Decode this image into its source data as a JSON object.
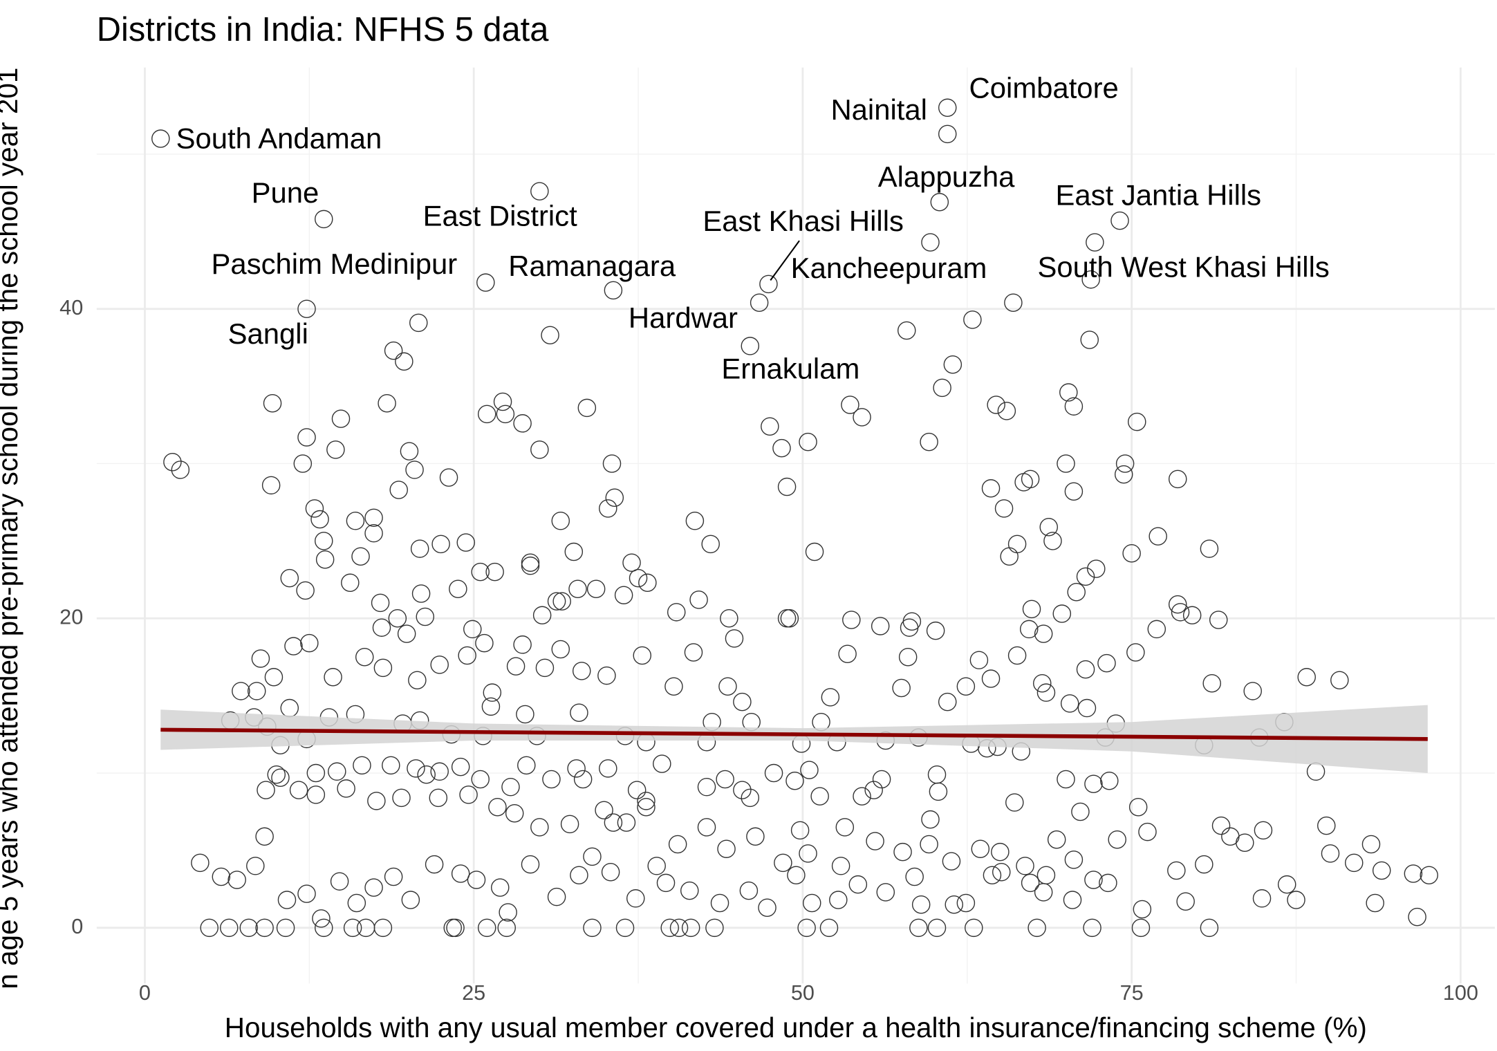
{
  "chart_data": {
    "type": "scatter",
    "title": "Districts in India: NFHS 5 data",
    "x_label": "Households with any usual member covered under a health insurance/financing scheme (%)",
    "y_label": "n age 5 years who attended pre-primary school during the school year 201",
    "color": "#333333",
    "grid": true,
    "xlim": [
      -3.66,
      102.6
    ],
    "ylim": [
      -3.6,
      55.6
    ],
    "xticks": [
      0,
      25,
      50,
      75,
      100
    ],
    "yticks": [
      0,
      20,
      40
    ],
    "x": [
      1.2,
      13.6,
      25.9,
      12.3,
      30.0,
      35.6,
      46.0,
      46.7,
      47.4,
      61.0,
      61.0,
      60.4,
      74.1,
      72.2,
      59.7,
      71.9,
      2.1,
      2.7,
      9.6,
      9.7,
      12.0,
      12.3,
      14.5,
      14.9,
      18.4,
      18.9,
      19.7,
      20.8,
      20.1,
      20.5,
      23.1,
      26.0,
      27.2,
      27.4,
      28.7,
      30.0,
      30.8,
      33.6,
      35.5,
      35.7,
      35.2,
      41.8,
      43.0,
      37.0,
      37.5,
      38.2,
      34.3,
      32.9,
      29.3,
      29.3,
      31.6,
      32.6,
      25.5,
      26.6,
      22.5,
      24.4,
      20.9,
      19.3,
      12.9,
      11.0,
      12.2,
      13.3,
      13.6,
      13.7,
      16.0,
      16.4,
      17.4,
      17.4,
      15.6,
      17.9,
      18.0,
      19.2,
      19.9,
      21.3,
      21.0,
      23.8,
      24.9,
      28.7,
      30.2,
      31.3,
      31.6,
      40.4,
      42.1,
      44.4,
      44.8,
      48.8,
      50.9,
      53.4,
      53.7,
      55.9,
      58.0,
      58.1,
      58.3,
      60.1,
      61.0,
      57.5,
      60.3,
      56.0,
      54.5,
      48.8,
      48.4,
      50.4,
      47.5,
      49.0,
      52.1,
      54.5,
      53.6,
      59.6,
      60.6,
      61.4,
      57.9,
      62.9,
      64.3,
      65.3,
      64.7,
      65.5,
      65.7,
      66.3,
      66.8,
      67.3,
      66.0,
      68.7,
      69.0,
      69.7,
      70.2,
      70.6,
      70.0,
      70.6,
      70.8,
      71.5,
      72.3,
      71.8,
      75.4,
      74.5,
      74.4,
      75.0,
      77.0,
      78.5,
      78.5,
      78.7,
      79.6,
      80.9,
      81.6,
      75.3,
      76.9,
      88.3,
      90.8,
      84.2,
      84.7,
      86.6,
      81.1,
      80.5,
      71.5,
      73.1,
      68.3,
      67.4,
      67.2,
      66.3,
      64.3,
      63.4,
      62.4,
      68.5,
      68.2,
      71.6,
      70.3,
      73.8,
      73.0,
      64.0,
      62.8,
      58.8,
      56.3,
      52.6,
      51.4,
      49.9,
      47.8,
      49.4,
      50.5,
      46.1,
      45.4,
      44.3,
      43.1,
      42.7,
      41.7,
      40.2,
      38.1,
      38.1,
      37.4,
      36.6,
      34.9,
      33.3,
      33.2,
      35.1,
      36.4,
      37.8,
      31.7,
      30.4,
      28.2,
      26.4,
      26.3,
      25.8,
      24.5,
      22.4,
      20.7,
      18.1,
      16.7,
      14.3,
      12.5,
      11.3,
      9.8,
      8.5,
      7.3,
      8.3,
      11.0,
      10.3,
      12.3,
      14.0,
      16.0,
      19.6,
      20.9,
      23.3,
      25.7,
      28.9,
      29.8,
      33.0,
      36.5,
      10.3,
      11.7,
      13.0,
      15.3,
      17.6,
      19.5,
      21.4,
      22.3,
      24.6,
      26.8,
      28.1,
      30.0,
      32.3,
      34.0,
      35.6,
      38.9,
      40.5,
      42.7,
      44.2,
      46.4,
      48.5,
      50.4,
      52.9,
      55.5,
      57.6,
      59.6,
      61.3,
      63.5,
      65.0,
      66.9,
      68.5,
      70.6,
      72.1,
      73.9,
      75.5,
      78.4,
      80.5,
      81.8,
      82.5,
      83.6,
      85.0,
      86.8,
      87.5,
      89.0,
      89.8,
      90.1,
      91.9,
      93.2,
      94.0,
      96.4,
      97.6,
      96.7,
      93.5,
      84.9,
      80.9,
      79.1,
      76.2,
      75.8,
      75.7,
      72.0,
      67.8,
      63.0,
      60.2,
      58.8,
      52.0,
      50.3,
      43.3,
      41.5,
      40.6,
      39.9,
      36.5,
      34.0,
      27.5,
      26.0,
      23.6,
      23.4,
      18.1,
      16.8,
      15.8,
      13.6,
      10.7,
      9.1,
      7.9,
      6.4,
      4.9,
      5.8,
      4.2,
      7.0,
      8.4,
      9.1,
      10.8,
      12.3,
      13.4,
      14.8,
      16.1,
      17.4,
      18.9,
      20.2,
      22.0,
      24.0,
      25.2,
      27.0,
      27.6,
      29.3,
      31.3,
      33.0,
      35.4,
      37.3,
      39.6,
      41.4,
      43.7,
      45.9,
      47.3,
      49.5,
      50.7,
      52.7,
      54.2,
      56.3,
      58.5,
      59.0,
      61.5,
      62.4,
      64.4,
      65.1,
      67.3,
      68.3,
      70.5,
      73.2,
      69.3,
      70.0,
      72.1,
      73.3,
      71.1,
      66.6,
      66.1,
      64.8,
      60.2,
      59.7,
      55.4,
      53.2,
      51.3,
      49.8,
      46.0,
      45.4,
      44.1,
      42.7,
      39.3,
      38.1,
      35.2,
      32.8,
      30.9,
      29.0,
      27.8,
      25.5,
      24.0,
      22.4,
      20.6,
      18.7,
      16.5,
      14.6,
      13.0,
      10.0,
      9.2,
      6.5,
      8.8,
      9.3
    ],
    "values": [
      51.0,
      45.8,
      41.7,
      40.0,
      47.6,
      41.2,
      37.6,
      40.4,
      41.6,
      51.3,
      53.0,
      46.9,
      45.7,
      44.3,
      44.3,
      41.9,
      30.1,
      29.6,
      28.6,
      33.9,
      30.0,
      31.7,
      30.9,
      32.9,
      33.9,
      37.3,
      36.6,
      39.1,
      30.8,
      29.6,
      29.1,
      33.2,
      34.0,
      33.2,
      32.6,
      30.9,
      38.3,
      33.6,
      30.0,
      27.8,
      27.1,
      26.3,
      24.8,
      23.6,
      22.6,
      22.3,
      21.9,
      21.9,
      23.4,
      23.6,
      26.3,
      24.3,
      23.0,
      23.0,
      24.8,
      24.9,
      24.5,
      28.3,
      27.1,
      22.6,
      21.8,
      26.4,
      25.0,
      23.8,
      26.3,
      24.0,
      26.5,
      25.5,
      22.3,
      21.0,
      19.4,
      20.0,
      19.0,
      20.1,
      21.6,
      21.9,
      19.3,
      18.3,
      20.2,
      21.1,
      18.0,
      20.4,
      21.2,
      20.0,
      18.7,
      20.0,
      24.3,
      17.7,
      19.9,
      19.5,
      17.5,
      19.4,
      19.8,
      19.2,
      14.6,
      15.5,
      8.8,
      9.6,
      8.5,
      28.5,
      31.0,
      31.4,
      32.4,
      20.0,
      14.9,
      33.0,
      33.8,
      31.4,
      34.9,
      36.4,
      38.6,
      39.3,
      28.4,
      27.1,
      33.8,
      33.4,
      24.0,
      24.8,
      28.8,
      29.0,
      40.4,
      25.9,
      25.0,
      20.3,
      34.6,
      33.7,
      30.0,
      28.2,
      21.7,
      22.7,
      23.2,
      38.0,
      32.7,
      30.0,
      29.3,
      24.2,
      25.3,
      29.0,
      20.9,
      20.4,
      20.2,
      24.5,
      19.9,
      17.8,
      19.3,
      16.2,
      16.0,
      15.3,
      12.3,
      13.3,
      15.8,
      11.8,
      16.7,
      17.1,
      19.0,
      20.6,
      19.3,
      17.6,
      16.1,
      17.3,
      15.6,
      15.2,
      15.8,
      14.2,
      14.5,
      13.2,
      12.3,
      11.6,
      11.9,
      12.3,
      12.1,
      12.0,
      13.3,
      11.9,
      10.0,
      9.5,
      10.2,
      13.3,
      14.6,
      15.6,
      13.3,
      12.0,
      17.8,
      15.6,
      12.0,
      7.8,
      8.9,
      6.8,
      7.6,
      9.6,
      16.6,
      16.3,
      21.5,
      17.6,
      21.1,
      16.8,
      16.9,
      15.2,
      14.3,
      18.4,
      17.6,
      17.0,
      16.0,
      16.8,
      17.5,
      16.2,
      18.4,
      18.2,
      16.2,
      15.3,
      15.3,
      13.6,
      14.2,
      11.8,
      12.2,
      13.6,
      13.8,
      13.2,
      13.4,
      12.5,
      12.4,
      13.8,
      12.4,
      13.9,
      12.4,
      9.7,
      8.9,
      8.6,
      9.0,
      8.2,
      8.4,
      9.9,
      8.4,
      8.6,
      7.8,
      7.4,
      6.5,
      6.7,
      4.6,
      6.8,
      4.0,
      5.4,
      6.5,
      5.1,
      5.9,
      4.2,
      4.8,
      4.0,
      5.6,
      4.9,
      5.4,
      4.3,
      5.1,
      4.9,
      4.0,
      3.4,
      4.4,
      3.1,
      5.7,
      7.8,
      3.7,
      4.1,
      6.6,
      5.9,
      5.5,
      6.3,
      2.8,
      1.8,
      10.1,
      6.6,
      4.8,
      4.2,
      5.4,
      3.7,
      3.5,
      3.4,
      0.7,
      1.6,
      1.9,
      0.0,
      1.7,
      6.2,
      1.2,
      0.0,
      0.0,
      0.0,
      0.0,
      0.0,
      0.0,
      0.0,
      0.0,
      0.0,
      0.0,
      0.0,
      0.0,
      0.0,
      0.0,
      0.0,
      0.0,
      0.0,
      0.0,
      0.0,
      0.0,
      0.0,
      0.0,
      0.0,
      0.0,
      0.0,
      0.0,
      0.0,
      3.3,
      4.2,
      3.1,
      4.0,
      5.9,
      1.8,
      2.2,
      0.6,
      3.0,
      1.6,
      2.6,
      3.3,
      1.8,
      4.1,
      3.5,
      3.1,
      2.6,
      1.0,
      4.1,
      2.0,
      3.4,
      3.6,
      1.9,
      2.9,
      2.4,
      1.6,
      2.4,
      1.3,
      3.4,
      1.6,
      1.8,
      2.8,
      2.3,
      3.3,
      1.5,
      1.5,
      1.6,
      3.4,
      3.6,
      2.9,
      2.3,
      1.8,
      2.9,
      5.7,
      9.6,
      9.3,
      9.5,
      7.5,
      11.4,
      8.1,
      11.7,
      9.9,
      7.0,
      8.9,
      6.5,
      8.5,
      6.3,
      8.4,
      8.9,
      9.6,
      9.1,
      10.6,
      8.2,
      10.3,
      10.3,
      9.6,
      10.5,
      9.1,
      9.6,
      10.4,
      10.1,
      10.3,
      10.5,
      10.5,
      10.1,
      10.0,
      9.9,
      8.9,
      13.4,
      17.4,
      13.0
    ],
    "trend": {
      "color": "#8b0000",
      "band_color": "#d3d3d3",
      "x": [
        1.2,
        25,
        50,
        75,
        97.5
      ],
      "values": [
        12.8,
        12.65,
        12.5,
        12.35,
        12.2
      ],
      "lower": [
        11.5,
        12.1,
        12.1,
        11.4,
        10.0
      ],
      "upper": [
        14.1,
        13.2,
        12.9,
        13.3,
        14.4
      ]
    },
    "annotations": [
      {
        "text": "South Andaman",
        "x": 1.2,
        "y": 51.0
      },
      {
        "text": "Pune",
        "x": 13.6,
        "y": 45.8
      },
      {
        "text": "Paschim Medinipur",
        "x": 25.9,
        "y": 41.7
      },
      {
        "text": "Sangli",
        "x": 12.3,
        "y": 40.0
      },
      {
        "text": "East District",
        "x": 30.0,
        "y": 47.6
      },
      {
        "text": "Ramanagara",
        "x": 35.6,
        "y": 41.2
      },
      {
        "text": "Hardwar",
        "x": 46.7,
        "y": 40.4
      },
      {
        "text": "East Khasi Hills",
        "x": 47.4,
        "y": 41.6
      },
      {
        "text": "Kancheepuram",
        "x": 59.7,
        "y": 44.3
      },
      {
        "text": "Ernakulam",
        "x": 46.0,
        "y": 37.6
      },
      {
        "text": "Nainital",
        "x": 61.0,
        "y": 51.3
      },
      {
        "text": "Coimbatore",
        "x": 61.0,
        "y": 53.0
      },
      {
        "text": "Alappuzha",
        "x": 60.4,
        "y": 46.9
      },
      {
        "text": "East Jantia Hills",
        "x": 74.1,
        "y": 45.7
      },
      {
        "text": "South West Khasi Hills",
        "x": 72.2,
        "y": 44.3
      }
    ]
  }
}
